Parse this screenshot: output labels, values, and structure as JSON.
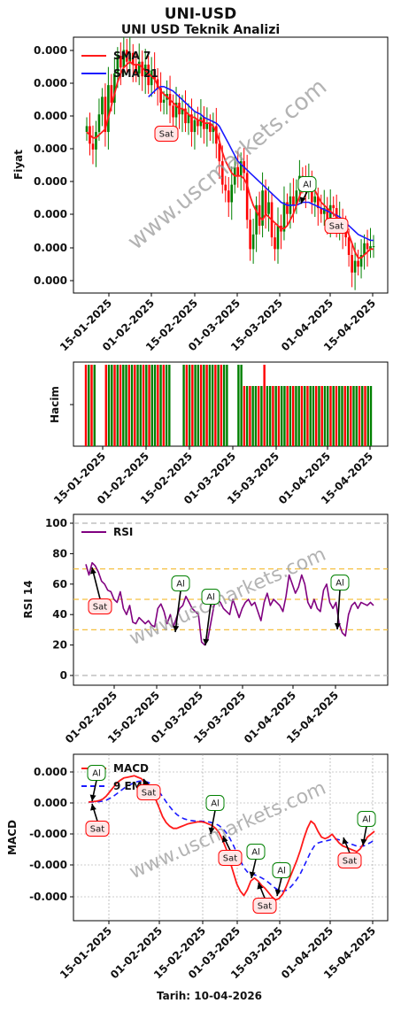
{
  "header": {
    "title": "UNI-USD",
    "subtitle": "UNI USD Teknik Analizi"
  },
  "footer": {
    "date_label": "Tarih: 10-04-2026"
  },
  "watermark": "www.uscmarkets.com",
  "colors": {
    "sma7": "#ff1a1a",
    "sma21": "#1a1aff",
    "up": "#008000",
    "down": "#ff0000",
    "rsi": "#800080",
    "ref": "#f5c040"
  },
  "chart_data": [
    {
      "type": "candlestick",
      "ylabel": "Fiyat",
      "ytick_labels": [
        "0.000",
        "0.000",
        "0.000",
        "0.000",
        "0.000",
        "0.000",
        "0.000",
        "0.000"
      ],
      "xtick_labels": [
        "15-01-2025",
        "01-02-2025",
        "15-02-2025",
        "01-03-2025",
        "15-03-2025",
        "01-04-2025",
        "15-04-2025"
      ],
      "legend": [
        "SMA 7",
        "SMA 21"
      ],
      "legend_position": "top-left",
      "annotations": [
        {
          "label": "Sat",
          "index": 25
        },
        {
          "label": "Al",
          "index": 69
        },
        {
          "label": "Sat",
          "index": 81
        }
      ],
      "close": [
        0.72,
        0.66,
        0.64,
        0.7,
        0.76,
        0.82,
        0.7,
        0.86,
        0.8,
        0.9,
        0.96,
        0.92,
        0.98,
        0.94,
        0.97,
        0.93,
        0.9,
        0.94,
        0.89,
        0.93,
        0.86,
        0.91,
        0.88,
        0.85,
        0.8,
        0.81,
        0.83,
        0.79,
        0.75,
        0.8,
        0.76,
        0.78,
        0.73,
        0.76,
        0.7,
        0.74,
        0.72,
        0.75,
        0.71,
        0.73,
        0.7,
        0.72,
        0.66,
        0.6,
        0.52,
        0.5,
        0.46,
        0.52,
        0.58,
        0.55,
        0.6,
        0.56,
        0.4,
        0.3,
        0.35,
        0.45,
        0.38,
        0.5,
        0.42,
        0.46,
        0.34,
        0.3,
        0.38,
        0.36,
        0.46,
        0.42,
        0.48,
        0.45,
        0.5,
        0.55,
        0.54,
        0.5,
        0.53,
        0.46,
        0.48,
        0.44,
        0.42,
        0.44,
        0.4,
        0.45,
        0.44,
        0.38,
        0.4,
        0.36,
        0.34,
        0.28,
        0.22,
        0.26,
        0.24,
        0.28,
        0.32,
        0.3,
        0.31,
        0.31
      ],
      "sma7": [
        0.7,
        0.69,
        0.68,
        0.68,
        0.69,
        0.7,
        0.71,
        0.75,
        0.79,
        0.83,
        0.87,
        0.9,
        0.92,
        0.93,
        0.94,
        0.93,
        0.93,
        0.93,
        0.92,
        0.91,
        0.9,
        0.89,
        0.88,
        0.86,
        0.84,
        0.83,
        0.82,
        0.81,
        0.8,
        0.79,
        0.78,
        0.78,
        0.77,
        0.76,
        0.75,
        0.75,
        0.74,
        0.74,
        0.73,
        0.73,
        0.73,
        0.72,
        0.7,
        0.67,
        0.63,
        0.6,
        0.58,
        0.56,
        0.55,
        0.55,
        0.55,
        0.54,
        0.52,
        0.48,
        0.45,
        0.43,
        0.41,
        0.4,
        0.42,
        0.41,
        0.4,
        0.39,
        0.38,
        0.37,
        0.37,
        0.38,
        0.4,
        0.42,
        0.45,
        0.48,
        0.51,
        0.52,
        0.52,
        0.51,
        0.5,
        0.48,
        0.46,
        0.45,
        0.44,
        0.43,
        0.42,
        0.41,
        0.4,
        0.38,
        0.37,
        0.35,
        0.32,
        0.29,
        0.27,
        0.27,
        0.28,
        0.29,
        0.3,
        0.3
      ],
      "sma21": [
        null,
        null,
        null,
        null,
        null,
        null,
        null,
        null,
        null,
        null,
        null,
        null,
        null,
        null,
        null,
        null,
        null,
        null,
        null,
        null,
        0.82,
        0.83,
        0.84,
        0.85,
        0.855,
        0.855,
        0.85,
        0.845,
        0.84,
        0.83,
        0.82,
        0.81,
        0.8,
        0.79,
        0.78,
        0.77,
        0.765,
        0.76,
        0.75,
        0.745,
        0.74,
        0.735,
        0.73,
        0.72,
        0.7,
        0.68,
        0.66,
        0.64,
        0.62,
        0.6,
        0.59,
        0.58,
        0.57,
        0.56,
        0.55,
        0.54,
        0.53,
        0.52,
        0.51,
        0.5,
        0.49,
        0.48,
        0.47,
        0.46,
        0.455,
        0.45,
        0.45,
        0.45,
        0.45,
        0.455,
        0.46,
        0.46,
        0.46,
        0.455,
        0.45,
        0.445,
        0.44,
        0.435,
        0.43,
        0.425,
        0.42,
        0.415,
        0.41,
        0.4,
        0.39,
        0.38,
        0.37,
        0.36,
        0.35,
        0.345,
        0.34,
        0.335,
        0.33,
        0.33
      ]
    },
    {
      "type": "bar",
      "ylabel": "Hacim",
      "xtick_labels": [
        "15-01-2025",
        "01-02-2025",
        "15-02-2025",
        "01-03-2025",
        "15-03-2025",
        "01-04-2025",
        "15-04-2025"
      ]
    },
    {
      "type": "line",
      "ylabel": "RSI 14",
      "ylim": [
        0,
        100
      ],
      "ytick_labels": [
        "0",
        "20",
        "40",
        "60",
        "80",
        "100"
      ],
      "xtick_labels": [
        "01-02-2025",
        "15-02-2025",
        "01-03-2025",
        "15-03-2025",
        "01-04-2025",
        "15-04-2025"
      ],
      "legend": [
        "RSI"
      ],
      "legend_position": "top-left",
      "reference_lines": [
        0,
        30,
        50,
        70,
        100
      ],
      "annotations": [
        {
          "label": "Sat",
          "index": 3,
          "y": 70
        },
        {
          "label": "Al",
          "index": 28,
          "y": 30
        },
        {
          "label": "Al",
          "index": 37,
          "y": 22
        },
        {
          "label": "Al",
          "index": 82,
          "y": 28
        }
      ],
      "values": [
        73,
        66,
        74,
        72,
        68,
        62,
        60,
        56,
        55,
        50,
        48,
        55,
        44,
        40,
        46,
        35,
        34,
        38,
        36,
        34,
        36,
        33,
        32,
        44,
        47,
        42,
        34,
        40,
        32,
        38,
        44,
        46,
        52,
        48,
        44,
        42,
        40,
        22,
        20,
        24,
        35,
        46,
        50,
        48,
        44,
        42,
        40,
        50,
        44,
        38,
        44,
        48,
        50,
        46,
        48,
        42,
        36,
        48,
        54,
        46,
        50,
        48,
        46,
        42,
        52,
        66,
        60,
        54,
        58,
        66,
        60,
        48,
        44,
        50,
        44,
        42,
        56,
        60,
        48,
        44,
        48,
        34,
        28,
        26,
        40,
        46,
        48,
        44,
        48,
        47,
        46,
        48,
        46
      ]
    },
    {
      "type": "line",
      "ylabel": "MACD",
      "ytick_labels": [
        "0.000",
        "0.000",
        "-0.000",
        "-0.000",
        "-0.000"
      ],
      "xtick_labels": [
        "15-01-2025",
        "01-02-2025",
        "15-02-2025",
        "01-03-2025",
        "15-03-2025",
        "01-04-2025",
        "15-04-2025"
      ],
      "legend": [
        "MACD",
        "9 EMA"
      ],
      "legend_position": "top-left",
      "annotations": [
        {
          "label": "Al",
          "index": 3
        },
        {
          "label": "Sat",
          "index": 2
        },
        {
          "label": "Sat",
          "index": 18
        },
        {
          "label": "Al",
          "index": 37
        },
        {
          "label": "Sat",
          "index": 42
        },
        {
          "label": "Al",
          "index": 50
        },
        {
          "label": "Sat",
          "index": 54
        },
        {
          "label": "Al",
          "index": 59
        },
        {
          "label": "Sat",
          "index": 79
        },
        {
          "label": "Al",
          "index": 88
        }
      ],
      "macd": [
        0.0,
        0.0003,
        0.0005,
        0.001,
        0.002,
        0.004,
        0.007,
        0.01,
        0.013,
        0.015,
        0.0165,
        0.017,
        0.0175,
        0.018,
        0.017,
        0.016,
        0.013,
        0.01,
        0.006,
        0.002,
        -0.004,
        -0.01,
        -0.014,
        -0.0165,
        -0.018,
        -0.018,
        -0.017,
        -0.016,
        -0.015,
        -0.0145,
        -0.014,
        -0.0135,
        -0.0135,
        -0.014,
        -0.015,
        -0.016,
        -0.018,
        -0.021,
        -0.026,
        -0.032,
        -0.04,
        -0.048,
        -0.056,
        -0.061,
        -0.064,
        -0.06,
        -0.054,
        -0.052,
        -0.054,
        -0.057,
        -0.059,
        -0.062,
        -0.065,
        -0.067,
        -0.066,
        -0.063,
        -0.058,
        -0.052,
        -0.046,
        -0.04,
        -0.033,
        -0.025,
        -0.018,
        -0.013,
        -0.015,
        -0.02,
        -0.024,
        -0.025,
        -0.024,
        -0.022,
        -0.025,
        -0.028,
        -0.03,
        -0.031,
        -0.032,
        -0.033,
        -0.034,
        -0.032,
        -0.028,
        -0.024,
        -0.022,
        -0.02
      ],
      "signal": [
        0.0,
        0.0,
        0.0001,
        0.0003,
        0.0006,
        0.0013,
        0.0024,
        0.0039,
        0.0057,
        0.0076,
        0.0094,
        0.0109,
        0.0122,
        0.0133,
        0.0141,
        0.0145,
        0.0142,
        0.0134,
        0.0119,
        0.0099,
        0.0071,
        0.0037,
        0.0002,
        -0.0031,
        -0.0061,
        -0.0085,
        -0.0102,
        -0.0114,
        -0.0121,
        -0.0126,
        -0.0129,
        -0.013,
        -0.0131,
        -0.0133,
        -0.0136,
        -0.0141,
        -0.0149,
        -0.0161,
        -0.0181,
        -0.0209,
        -0.0247,
        -0.0294,
        -0.0347,
        -0.04,
        -0.0448,
        -0.0478,
        -0.0491,
        -0.0497,
        -0.0506,
        -0.0519,
        -0.0533,
        -0.0551,
        -0.0571,
        -0.0591,
        -0.0605,
        -0.061,
        -0.0604,
        -0.0587,
        -0.0562,
        -0.0529,
        -0.049,
        -0.0442,
        -0.039,
        -0.0338,
        -0.03,
        -0.028,
        -0.0272,
        -0.0268,
        -0.0262,
        -0.0254,
        -0.0253,
        -0.0258,
        -0.0266,
        -0.0275,
        -0.0284,
        -0.0293,
        -0.0302,
        -0.0306,
        -0.03,
        -0.0288,
        -0.0275,
        -0.026
      ]
    }
  ]
}
